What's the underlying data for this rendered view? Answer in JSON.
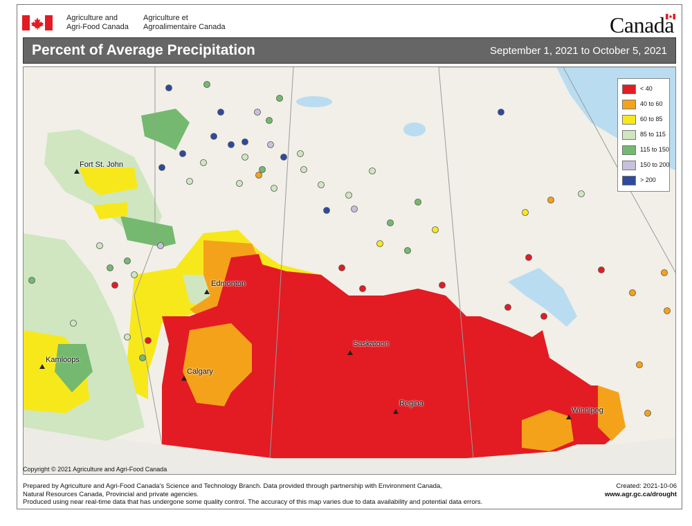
{
  "header": {
    "dept_en_line1": "Agriculture and",
    "dept_en_line2": "Agri-Food Canada",
    "dept_fr_line1": "Agriculture et",
    "dept_fr_line2": "Agroalimentaire Canada",
    "wordmark": "Canada"
  },
  "titlebar": {
    "title": "Percent of Average Precipitation",
    "date_range": "September 1, 2021 to October 5, 2021"
  },
  "legend": {
    "items": [
      {
        "label": "< 40",
        "color": "#e31b23"
      },
      {
        "label": "40 to 60",
        "color": "#f5a21b"
      },
      {
        "label": "60 to 85",
        "color": "#f7e81c"
      },
      {
        "label": "85 to 115",
        "color": "#cfe6c1"
      },
      {
        "label": "115 to 150",
        "color": "#74b96f"
      },
      {
        "label": "150 to 200",
        "color": "#c8c0dc"
      },
      {
        "label": "> 200",
        "color": "#2d4a9e"
      }
    ]
  },
  "cities": [
    {
      "name": "Fort St. John"
    },
    {
      "name": "Edmonton"
    },
    {
      "name": "Kamloops"
    },
    {
      "name": "Calgary"
    },
    {
      "name": "Saskatoon"
    },
    {
      "name": "Regina"
    },
    {
      "name": "Winnipeg"
    }
  ],
  "colors": {
    "water": "#b9dcf0",
    "land": "#f1efe8",
    "border": "#9a9a9a"
  },
  "copyright": "Copyright © 2021 Agriculture and Agri-Food Canada",
  "footer": {
    "line1": "Prepared by Agriculture and Agri-Food Canada's Science and Technology Branch. Data provided through partnership with Environment Canada,",
    "line2": "Natural Resources Canada, Provincial and private agencies.",
    "line3": "Produced using near real-time data that has undergone some quality control. The accuracy of this map varies due to data availability and potential data errors.",
    "created": "Created: 2021-10-06",
    "url": "www.agr.gc.ca/drought"
  }
}
